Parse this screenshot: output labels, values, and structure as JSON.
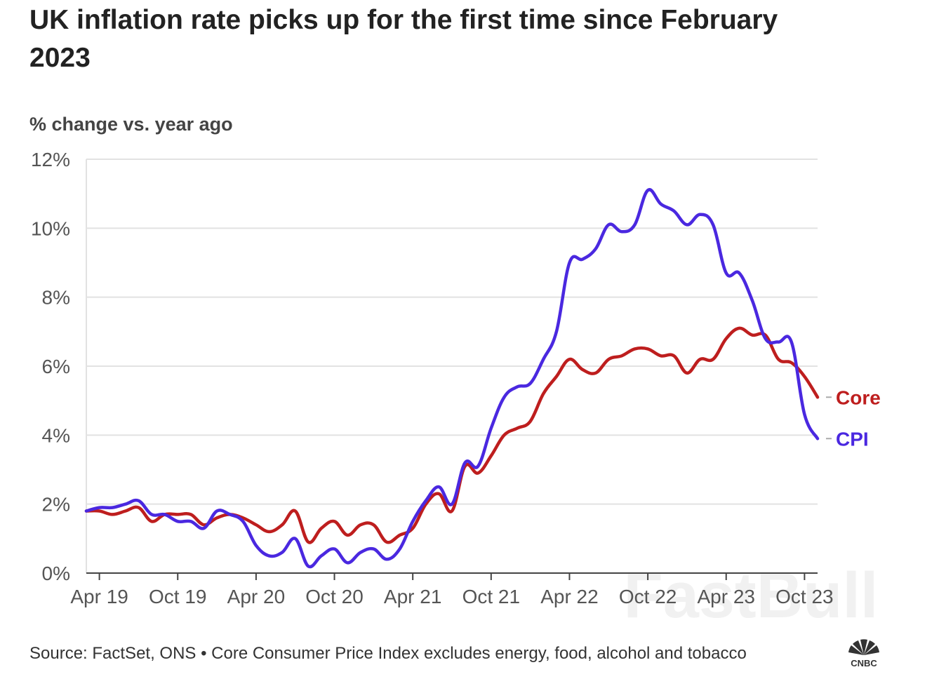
{
  "header": {
    "title": "UK inflation rate picks up for the first time since February 2023",
    "subtitle": "% change vs. year ago"
  },
  "footer": {
    "source": "Source: FactSet, ONS • Core Consumer Price Index excludes energy, food, alcohol and tobacco"
  },
  "watermark": {
    "text": "FastBull"
  },
  "logo": {
    "name": "cnbc-peacock-icon",
    "text": "CNBC"
  },
  "colors": {
    "cpi": "#4a28e0",
    "core": "#be1e1e",
    "grid": "#e2e2e2",
    "axis": "#444444"
  },
  "chart_data": {
    "type": "line",
    "title": "UK inflation rate picks up for the first time since February 2023",
    "ylabel": "% change vs. year ago",
    "ylim": [
      0,
      12
    ],
    "y_ticks": [
      0,
      2,
      4,
      6,
      8,
      10,
      12
    ],
    "y_tick_labels": [
      "0%",
      "2%",
      "4%",
      "6%",
      "8%",
      "10%",
      "12%"
    ],
    "x_tick_labels": [
      "Apr 19",
      "Oct 19",
      "Apr 20",
      "Oct 20",
      "Apr 21",
      "Oct 21",
      "Apr 22",
      "Oct 22",
      "Apr 23",
      "Oct 23"
    ],
    "x_tick_dates": [
      "2019-04",
      "2019-10",
      "2020-04",
      "2020-10",
      "2021-04",
      "2021-10",
      "2022-04",
      "2022-10",
      "2023-04",
      "2023-10"
    ],
    "x_range": [
      "2019-03",
      "2023-11"
    ],
    "legend": "labels-at-line-end",
    "series": [
      {
        "name": "CPI",
        "color": "#4a28e0",
        "x": [
          "2019-03",
          "2019-04",
          "2019-05",
          "2019-06",
          "2019-07",
          "2019-08",
          "2019-09",
          "2019-10",
          "2019-11",
          "2019-12",
          "2020-01",
          "2020-02",
          "2020-03",
          "2020-04",
          "2020-05",
          "2020-06",
          "2020-07",
          "2020-08",
          "2020-09",
          "2020-10",
          "2020-11",
          "2020-12",
          "2021-01",
          "2021-02",
          "2021-03",
          "2021-04",
          "2021-05",
          "2021-06",
          "2021-07",
          "2021-08",
          "2021-09",
          "2021-10",
          "2021-11",
          "2021-12",
          "2022-01",
          "2022-02",
          "2022-03",
          "2022-04",
          "2022-05",
          "2022-06",
          "2022-07",
          "2022-08",
          "2022-09",
          "2022-10",
          "2022-11",
          "2022-12",
          "2023-01",
          "2023-02",
          "2023-03",
          "2023-04",
          "2023-05",
          "2023-06",
          "2023-07",
          "2023-08",
          "2023-09",
          "2023-10",
          "2023-11"
        ],
        "values": [
          1.8,
          1.9,
          1.9,
          2.0,
          2.1,
          1.7,
          1.7,
          1.5,
          1.5,
          1.3,
          1.8,
          1.7,
          1.5,
          0.8,
          0.5,
          0.6,
          1.0,
          0.2,
          0.5,
          0.7,
          0.3,
          0.6,
          0.7,
          0.4,
          0.7,
          1.5,
          2.1,
          2.5,
          2.0,
          3.2,
          3.1,
          4.2,
          5.1,
          5.4,
          5.5,
          6.2,
          7.0,
          9.0,
          9.1,
          9.4,
          10.1,
          9.9,
          10.1,
          11.1,
          10.7,
          10.5,
          10.1,
          10.4,
          10.1,
          8.7,
          8.7,
          7.9,
          6.8,
          6.7,
          6.7,
          4.6,
          3.9
        ]
      },
      {
        "name": "Core",
        "color": "#be1e1e",
        "x": [
          "2019-03",
          "2019-04",
          "2019-05",
          "2019-06",
          "2019-07",
          "2019-08",
          "2019-09",
          "2019-10",
          "2019-11",
          "2019-12",
          "2020-01",
          "2020-02",
          "2020-03",
          "2020-04",
          "2020-05",
          "2020-06",
          "2020-07",
          "2020-08",
          "2020-09",
          "2020-10",
          "2020-11",
          "2020-12",
          "2021-01",
          "2021-02",
          "2021-03",
          "2021-04",
          "2021-05",
          "2021-06",
          "2021-07",
          "2021-08",
          "2021-09",
          "2021-10",
          "2021-11",
          "2021-12",
          "2022-01",
          "2022-02",
          "2022-03",
          "2022-04",
          "2022-05",
          "2022-06",
          "2022-07",
          "2022-08",
          "2022-09",
          "2022-10",
          "2022-11",
          "2022-12",
          "2023-01",
          "2023-02",
          "2023-03",
          "2023-04",
          "2023-05",
          "2023-06",
          "2023-07",
          "2023-08",
          "2023-09",
          "2023-10",
          "2023-11"
        ],
        "values": [
          1.8,
          1.8,
          1.7,
          1.8,
          1.9,
          1.5,
          1.7,
          1.7,
          1.7,
          1.4,
          1.6,
          1.7,
          1.6,
          1.4,
          1.2,
          1.4,
          1.8,
          0.9,
          1.3,
          1.5,
          1.1,
          1.4,
          1.4,
          0.9,
          1.1,
          1.3,
          2.0,
          2.3,
          1.8,
          3.1,
          2.9,
          3.4,
          4.0,
          4.2,
          4.4,
          5.2,
          5.7,
          6.2,
          5.9,
          5.8,
          6.2,
          6.3,
          6.5,
          6.5,
          6.3,
          6.3,
          5.8,
          6.2,
          6.2,
          6.8,
          7.1,
          6.9,
          6.9,
          6.2,
          6.1,
          5.7,
          5.1
        ]
      }
    ]
  }
}
